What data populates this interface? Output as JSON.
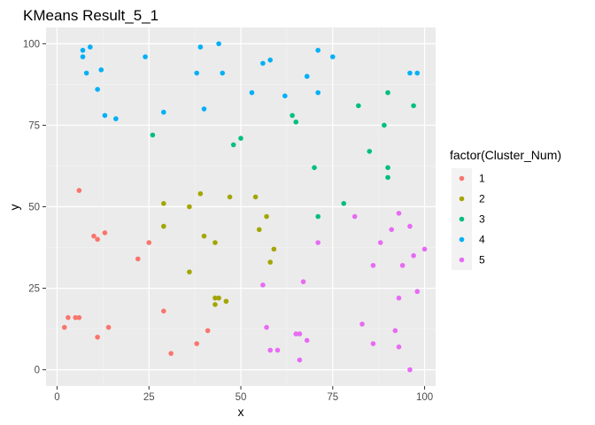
{
  "chart_data": {
    "type": "scatter",
    "title": "KMeans Result_5_1",
    "xlabel": "x",
    "ylabel": "y",
    "xlim": [
      -3,
      103
    ],
    "ylim": [
      -5,
      105
    ],
    "x_ticks": [
      0,
      25,
      50,
      75,
      100
    ],
    "y_ticks": [
      0,
      25,
      50,
      75,
      100
    ],
    "grid": true,
    "legend": {
      "title": "factor(Cluster_Num)",
      "placement": "right"
    },
    "series": [
      {
        "name": "1",
        "color": "#F8766D",
        "points": [
          [
            6,
            55
          ],
          [
            10,
            41
          ],
          [
            11,
            40
          ],
          [
            13,
            42
          ],
          [
            25,
            39
          ],
          [
            22,
            34
          ],
          [
            3,
            16
          ],
          [
            5,
            16
          ],
          [
            6,
            16
          ],
          [
            2,
            13
          ],
          [
            11,
            10
          ],
          [
            14,
            13
          ],
          [
            31,
            5
          ],
          [
            38,
            8
          ],
          [
            41,
            12
          ],
          [
            29,
            18
          ]
        ]
      },
      {
        "name": "2",
        "color": "#A3A500",
        "points": [
          [
            29,
            51
          ],
          [
            39,
            54
          ],
          [
            36,
            50
          ],
          [
            47,
            53
          ],
          [
            54,
            53
          ],
          [
            57,
            47
          ],
          [
            29,
            44
          ],
          [
            40,
            41
          ],
          [
            43,
            39
          ],
          [
            55,
            43
          ],
          [
            59,
            37
          ],
          [
            58,
            33
          ],
          [
            36,
            30
          ],
          [
            43,
            22
          ],
          [
            44,
            22
          ],
          [
            46,
            21
          ],
          [
            43,
            20
          ]
        ]
      },
      {
        "name": "3",
        "color": "#00BF7D",
        "points": [
          [
            26,
            72
          ],
          [
            48,
            69
          ],
          [
            50,
            71
          ],
          [
            64,
            78
          ],
          [
            65,
            76
          ],
          [
            82,
            81
          ],
          [
            90,
            85
          ],
          [
            89,
            75
          ],
          [
            97,
            81
          ],
          [
            85,
            67
          ],
          [
            70,
            62
          ],
          [
            90,
            62
          ],
          [
            90,
            59
          ],
          [
            78,
            51
          ],
          [
            71,
            47
          ]
        ]
      },
      {
        "name": "4",
        "color": "#00B0F6",
        "points": [
          [
            7,
            98
          ],
          [
            9,
            99
          ],
          [
            7,
            96
          ],
          [
            8,
            91
          ],
          [
            11,
            86
          ],
          [
            12,
            92
          ],
          [
            13,
            78
          ],
          [
            16,
            77
          ],
          [
            24,
            96
          ],
          [
            29,
            79
          ],
          [
            38,
            91
          ],
          [
            39,
            99
          ],
          [
            40,
            80
          ],
          [
            44,
            100
          ],
          [
            45,
            91
          ],
          [
            53,
            85
          ],
          [
            56,
            94
          ],
          [
            58,
            95
          ],
          [
            62,
            84
          ],
          [
            68,
            90
          ],
          [
            71,
            98
          ],
          [
            71,
            85
          ],
          [
            75,
            96
          ],
          [
            96,
            91
          ],
          [
            98,
            91
          ]
        ]
      },
      {
        "name": "5",
        "color": "#E76BF3",
        "points": [
          [
            81,
            47
          ],
          [
            93,
            48
          ],
          [
            91,
            43
          ],
          [
            96,
            44
          ],
          [
            71,
            39
          ],
          [
            88,
            39
          ],
          [
            97,
            35
          ],
          [
            100,
            37
          ],
          [
            86,
            32
          ],
          [
            94,
            32
          ],
          [
            56,
            26
          ],
          [
            67,
            27
          ],
          [
            98,
            24
          ],
          [
            93,
            22
          ],
          [
            57,
            13
          ],
          [
            83,
            14
          ],
          [
            92,
            12
          ],
          [
            65,
            11
          ],
          [
            66,
            11
          ],
          [
            68,
            9
          ],
          [
            86,
            8
          ],
          [
            93,
            7
          ],
          [
            58,
            6
          ],
          [
            60,
            6
          ],
          [
            66,
            3
          ],
          [
            96,
            0
          ]
        ]
      }
    ]
  }
}
